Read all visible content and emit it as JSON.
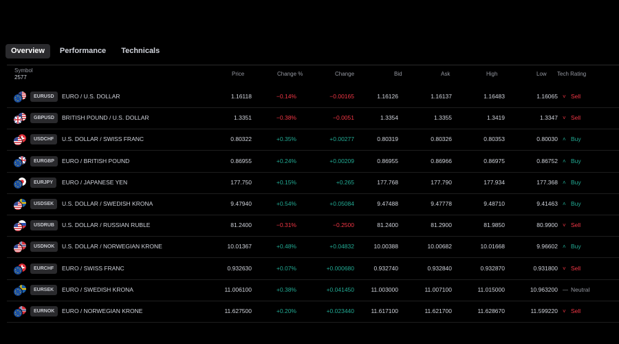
{
  "tabs": [
    {
      "label": "Overview",
      "active": true
    },
    {
      "label": "Performance",
      "active": false
    },
    {
      "label": "Technicals",
      "active": false
    }
  ],
  "table": {
    "symbol_header": "Symbol",
    "symbol_count": "2577",
    "columns": [
      "Price",
      "Change %",
      "Change",
      "Bid",
      "Ask",
      "High",
      "Low",
      "Tech Rating"
    ],
    "colors": {
      "negative": "#f23645",
      "positive": "#22ab94",
      "neutral": "#9598a1"
    },
    "rows": [
      {
        "ticker": "EURUSD",
        "desc": "EURO / U.S. DOLLAR",
        "price": "1.16118",
        "chp": "−0.14%",
        "ch": "−0.00165",
        "bid": "1.16126",
        "ask": "1.16137",
        "high": "1.16483",
        "low": "1.16065",
        "rating": "Sell",
        "dir": "neg",
        "base": "eu",
        "quote": "us"
      },
      {
        "ticker": "GBPUSD",
        "desc": "BRITISH POUND / U.S. DOLLAR",
        "price": "1.3351",
        "chp": "−0.38%",
        "ch": "−0.0051",
        "bid": "1.3354",
        "ask": "1.3355",
        "high": "1.3419",
        "low": "1.3347",
        "rating": "Sell",
        "dir": "neg",
        "base": "gb",
        "quote": "us"
      },
      {
        "ticker": "USDCHF",
        "desc": "U.S. DOLLAR / SWISS FRANC",
        "price": "0.80322",
        "chp": "+0.35%",
        "ch": "+0.00277",
        "bid": "0.80319",
        "ask": "0.80326",
        "high": "0.80353",
        "low": "0.80030",
        "rating": "Buy",
        "dir": "pos",
        "base": "us",
        "quote": "ch"
      },
      {
        "ticker": "EURGBP",
        "desc": "EURO / BRITISH POUND",
        "price": "0.86955",
        "chp": "+0.24%",
        "ch": "+0.00209",
        "bid": "0.86955",
        "ask": "0.86966",
        "high": "0.86975",
        "low": "0.86752",
        "rating": "Buy",
        "dir": "pos",
        "base": "eu",
        "quote": "gb"
      },
      {
        "ticker": "EURJPY",
        "desc": "EURO / JAPANESE YEN",
        "price": "177.750",
        "chp": "+0.15%",
        "ch": "+0.265",
        "bid": "177.768",
        "ask": "177.790",
        "high": "177.934",
        "low": "177.368",
        "rating": "Buy",
        "dir": "pos",
        "base": "eu",
        "quote": "jp"
      },
      {
        "ticker": "USDSEK",
        "desc": "U.S. DOLLAR / SWEDISH KRONA",
        "price": "9.47940",
        "chp": "+0.54%",
        "ch": "+0.05084",
        "bid": "9.47488",
        "ask": "9.47778",
        "high": "9.48710",
        "low": "9.41463",
        "rating": "Buy",
        "dir": "pos",
        "base": "us",
        "quote": "se"
      },
      {
        "ticker": "USDRUB",
        "desc": "U.S. DOLLAR / RUSSIAN RUBLE",
        "price": "81.2400",
        "chp": "−0.31%",
        "ch": "−0.2500",
        "bid": "81.2400",
        "ask": "81.2900",
        "high": "81.9850",
        "low": "80.9900",
        "rating": "Sell",
        "dir": "neg",
        "base": "us",
        "quote": "ru"
      },
      {
        "ticker": "USDNOK",
        "desc": "U.S. DOLLAR / NORWEGIAN KRONE",
        "price": "10.01367",
        "chp": "+0.48%",
        "ch": "+0.04832",
        "bid": "10.00388",
        "ask": "10.00682",
        "high": "10.01668",
        "low": "9.96602",
        "rating": "Buy",
        "dir": "pos",
        "base": "us",
        "quote": "no"
      },
      {
        "ticker": "EURCHF",
        "desc": "EURO / SWISS FRANC",
        "price": "0.932630",
        "chp": "+0.07%",
        "ch": "+0.000680",
        "bid": "0.932740",
        "ask": "0.932840",
        "high": "0.932870",
        "low": "0.931800",
        "rating": "Sell",
        "dir": "pos",
        "rdir": "neg",
        "base": "eu",
        "quote": "ch"
      },
      {
        "ticker": "EURSEK",
        "desc": "EURO / SWEDISH KRONA",
        "price": "11.006100",
        "chp": "+0.38%",
        "ch": "+0.041450",
        "bid": "11.003000",
        "ask": "11.007100",
        "high": "11.015000",
        "low": "10.963200",
        "rating": "Neutral",
        "dir": "pos",
        "rdir": "neu",
        "base": "eu",
        "quote": "se"
      },
      {
        "ticker": "EURNOK",
        "desc": "EURO / NORWEGIAN KRONE",
        "price": "11.627500",
        "chp": "+0.20%",
        "ch": "+0.023440",
        "bid": "11.617100",
        "ask": "11.621700",
        "high": "11.628670",
        "low": "11.599220",
        "rating": "Sell",
        "dir": "pos",
        "rdir": "neg",
        "base": "eu",
        "quote": "no"
      }
    ]
  }
}
